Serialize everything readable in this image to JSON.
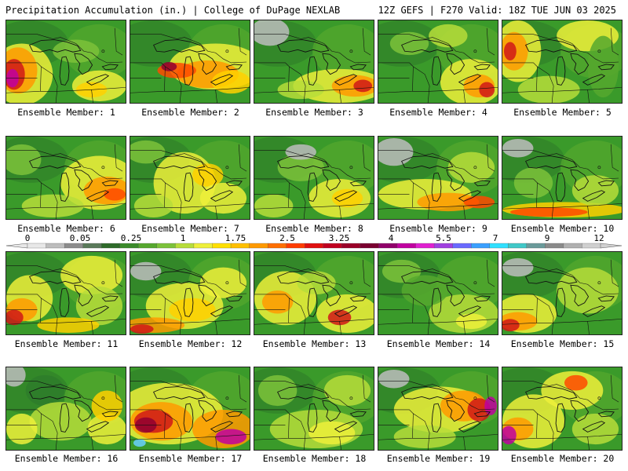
{
  "header": {
    "left": "Precipitation Accumulation (in.) | College of DuPage NEXLAB",
    "right": "12Z GEFS | F270 Valid: 18Z TUE JUN 03 2025"
  },
  "colorbar": {
    "labels": [
      "0",
      "0.05",
      "0.25",
      "1",
      "1.75",
      "2.5",
      "3.25",
      "4",
      "5.5",
      "7",
      "9",
      "12"
    ],
    "colors": [
      "#e8e8e8",
      "#bdbdbd",
      "#8c8c8c",
      "#5a7a5a",
      "#2e6b2a",
      "#3a8a2a",
      "#56a82e",
      "#7cc23a",
      "#b7dd3a",
      "#eef03a",
      "#ffe000",
      "#ffc000",
      "#ff9a00",
      "#ff6f00",
      "#ff3c00",
      "#e01010",
      "#c00020",
      "#9a0028",
      "#7a0030",
      "#90006a",
      "#c000a0",
      "#e020d0",
      "#a040e0",
      "#6a6aff",
      "#3aa0ff",
      "#30e0ff",
      "#40c8c8",
      "#6a9a9a",
      "#8a8a8a",
      "#b0b0b0",
      "#d0d0d0"
    ]
  },
  "panels": [
    {
      "label": "Ensemble Member: 1"
    },
    {
      "label": "Ensemble Member: 2"
    },
    {
      "label": "Ensemble Member: 3"
    },
    {
      "label": "Ensemble Member: 4"
    },
    {
      "label": "Ensemble Member: 5"
    },
    {
      "label": "Ensemble Member: 6"
    },
    {
      "label": "Ensemble Member: 7"
    },
    {
      "label": "Ensemble Member: 8"
    },
    {
      "label": "Ensemble Member: 9"
    },
    {
      "label": "Ensemble Member: 10"
    },
    {
      "label": "Ensemble Member: 11"
    },
    {
      "label": "Ensemble Member: 12"
    },
    {
      "label": "Ensemble Member: 13"
    },
    {
      "label": "Ensemble Member: 14"
    },
    {
      "label": "Ensemble Member: 15"
    },
    {
      "label": "Ensemble Member: 16"
    },
    {
      "label": "Ensemble Member: 17"
    },
    {
      "label": "Ensemble Member: 18"
    },
    {
      "label": "Ensemble Member: 19"
    },
    {
      "label": "Ensemble Member: 20"
    }
  ]
}
